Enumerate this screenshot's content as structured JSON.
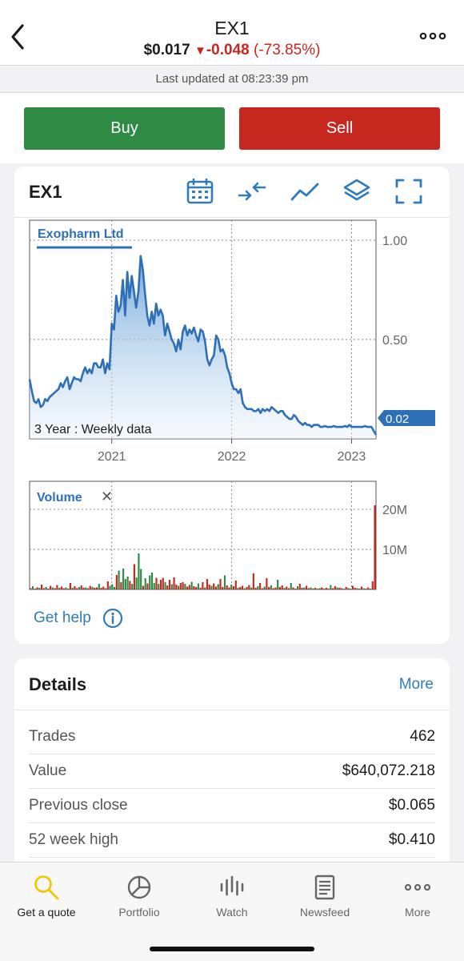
{
  "header": {
    "title": "EX1",
    "price": "$0.017",
    "change": "-0.048",
    "change_pct": "(-73.85%)",
    "last_updated": "Last updated at 08:23:39 pm"
  },
  "actions": {
    "buy_label": "Buy",
    "sell_label": "Sell"
  },
  "chart_card": {
    "title": "EX1",
    "tools": [
      "calendar-icon",
      "compare-icon",
      "line-chart-icon",
      "layers-icon",
      "fullscreen-icon"
    ],
    "help_label": "Get help"
  },
  "chart_data": [
    {
      "type": "area",
      "title": "Exopharm Ltd",
      "subtitle": "3 Year : Weekly data",
      "x_ticks": [
        "2021",
        "2022",
        "2023"
      ],
      "y_ticks": [
        "1.00",
        "0.50"
      ],
      "ylim": [
        0,
        1.1
      ],
      "last_value_label": "0.02",
      "grid": true,
      "x": [
        0,
        1,
        2,
        3,
        4,
        5,
        6,
        7,
        8,
        9,
        10,
        11,
        12,
        13,
        14,
        15,
        16,
        17,
        18,
        19,
        20,
        21,
        22,
        23,
        24,
        25,
        26,
        27,
        28,
        29,
        30,
        31,
        32,
        33,
        34,
        35,
        36,
        37,
        38,
        39,
        40,
        41,
        42,
        43,
        44,
        45,
        46,
        47,
        48,
        49,
        50,
        51,
        52,
        53,
        54,
        55,
        56,
        57,
        58,
        59,
        60,
        61,
        62,
        63,
        64,
        65,
        66,
        67,
        68,
        69,
        70,
        71,
        72,
        73,
        74,
        75,
        76,
        77,
        78,
        79,
        80,
        81,
        82,
        83,
        84,
        85,
        86,
        87,
        88,
        89,
        90,
        91,
        92,
        93,
        94,
        95,
        96,
        97,
        98,
        99,
        100,
        101,
        102,
        103,
        104,
        105,
        106,
        107,
        108,
        109,
        110,
        111,
        112,
        113,
        114,
        115,
        116,
        117,
        118,
        119,
        120,
        121,
        122,
        123,
        124,
        125,
        126,
        127,
        128,
        129,
        130,
        131,
        132,
        133,
        134,
        135,
        136,
        137,
        138,
        139,
        140,
        141,
        142,
        143,
        144,
        145,
        146,
        147,
        148,
        149,
        150,
        151,
        152,
        153,
        154,
        155,
        156
      ],
      "values": [
        0.3,
        0.24,
        0.19,
        0.18,
        0.2,
        0.16,
        0.17,
        0.2,
        0.19,
        0.21,
        0.22,
        0.23,
        0.24,
        0.25,
        0.28,
        0.26,
        0.29,
        0.31,
        0.25,
        0.28,
        0.31,
        0.3,
        0.3,
        0.29,
        0.33,
        0.36,
        0.33,
        0.35,
        0.33,
        0.38,
        0.38,
        0.36,
        0.36,
        0.4,
        0.33,
        0.38,
        0.35,
        0.58,
        0.55,
        0.72,
        0.64,
        0.67,
        0.8,
        0.62,
        0.84,
        0.71,
        0.82,
        0.74,
        0.66,
        0.74,
        0.92,
        0.85,
        0.73,
        0.62,
        0.57,
        0.64,
        0.58,
        0.68,
        0.62,
        0.65,
        0.62,
        0.52,
        0.58,
        0.54,
        0.5,
        0.48,
        0.44,
        0.5,
        0.45,
        0.54,
        0.57,
        0.52,
        0.55,
        0.53,
        0.56,
        0.52,
        0.49,
        0.55,
        0.54,
        0.49,
        0.4,
        0.37,
        0.4,
        0.42,
        0.52,
        0.5,
        0.44,
        0.45,
        0.42,
        0.36,
        0.33,
        0.28,
        0.25,
        0.25,
        0.23,
        0.25,
        0.18,
        0.16,
        0.15,
        0.15,
        0.15,
        0.14,
        0.14,
        0.15,
        0.13,
        0.15,
        0.14,
        0.15,
        0.14,
        0.16,
        0.15,
        0.14,
        0.13,
        0.14,
        0.14,
        0.12,
        0.11,
        0.1,
        0.1,
        0.12,
        0.11,
        0.09,
        0.08,
        0.07,
        0.08,
        0.07,
        0.07,
        0.06,
        0.07,
        0.07,
        0.07,
        0.06,
        0.06,
        0.065,
        0.06,
        0.06,
        0.06,
        0.065,
        0.06,
        0.06,
        0.06,
        0.06,
        0.065,
        0.06,
        0.07,
        0.06,
        0.06,
        0.06,
        0.06,
        0.06,
        0.06,
        0.065,
        0.06,
        0.06,
        0.06,
        0.04,
        0.02
      ]
    },
    {
      "type": "bar",
      "title": "Volume",
      "y_ticks": [
        "20M",
        "10M"
      ],
      "ylim": [
        0,
        27000000
      ],
      "grid": true,
      "values": [
        0.3,
        0.8,
        0.2,
        0.5,
        0.4,
        1.2,
        0.3,
        0.6,
        0.2,
        0.9,
        0.5,
        0.3,
        1.1,
        0.4,
        0.7,
        0.3,
        0.5,
        0.2,
        1.6,
        0.4,
        0.8,
        0.3,
        0.6,
        1.0,
        0.4,
        0.5,
        0.3,
        0.9,
        0.6,
        0.4,
        0.5,
        1.4,
        0.4,
        0.7,
        0.3,
        2.0,
        0.9,
        1.3,
        0.6,
        3.6,
        4.7,
        1.8,
        5.2,
        2.6,
        3.2,
        2.1,
        1.4,
        6.3,
        3.0,
        9.0,
        5.1,
        0.9,
        2.8,
        1.5,
        3.5,
        4.2,
        1.6,
        2.9,
        1.4,
        2.4,
        2.9,
        1.8,
        1.0,
        2.4,
        1.3,
        3.0,
        1.2,
        0.9,
        1.6,
        1.8,
        1.4,
        0.7,
        1.1,
        1.9,
        0.8,
        0.6,
        1.5,
        0.4,
        1.8,
        0.5,
        2.6,
        1.2,
        0.9,
        1.5,
        0.7,
        1.3,
        2.6,
        0.6,
        3.5,
        1.0,
        0.5,
        1.2,
        0.8,
        2.2,
        0.4,
        0.6,
        0.9,
        0.3,
        0.6,
        1.1,
        0.5,
        4.0,
        0.4,
        0.8,
        1.6,
        0.3,
        0.7,
        2.8,
        0.6,
        1.0,
        0.3,
        0.5,
        2.4,
        0.6,
        1.0,
        0.4,
        0.7,
        0.3,
        1.6,
        0.5,
        0.2,
        0.8,
        1.4,
        0.4,
        0.5,
        0.9,
        0.3,
        0.5,
        0.2,
        0.4,
        0.2,
        0.3,
        0.5,
        0.2,
        0.4,
        0.2,
        1.1,
        0.3,
        0.8,
        0.5,
        0.4,
        0.3,
        0.2,
        0.6,
        0.3,
        0.2,
        0.9,
        0.4,
        0.3,
        0.2,
        0.7,
        0.3,
        0.2,
        0.5,
        0.2,
        2.0,
        21.0
      ],
      "colors": [
        "#2f8a43",
        "#c6281f"
      ]
    }
  ],
  "chart_labels": {
    "volume_close": "✕"
  },
  "details": {
    "title": "Details",
    "more_label": "More",
    "rows": [
      {
        "label": "Trades",
        "value": "462"
      },
      {
        "label": "Value",
        "value": "$640,072.218"
      },
      {
        "label": "Previous close",
        "value": "$0.065"
      },
      {
        "label": "52 week high",
        "value": "$0.410"
      }
    ]
  },
  "tabbar": {
    "tabs": [
      {
        "label": "Get a quote",
        "icon": "search-icon"
      },
      {
        "label": "Portfolio",
        "icon": "pie-chart-icon"
      },
      {
        "label": "Watch",
        "icon": "watch-icon"
      },
      {
        "label": "Newsfeed",
        "icon": "newsfeed-icon"
      },
      {
        "label": "More",
        "icon": "more-icon"
      }
    ]
  },
  "colors": {
    "accent": "#2e7bbd",
    "buy": "#2f8a43",
    "sell": "#c6281f",
    "negative": "#c9261f",
    "active_tab": "#f1c400"
  }
}
